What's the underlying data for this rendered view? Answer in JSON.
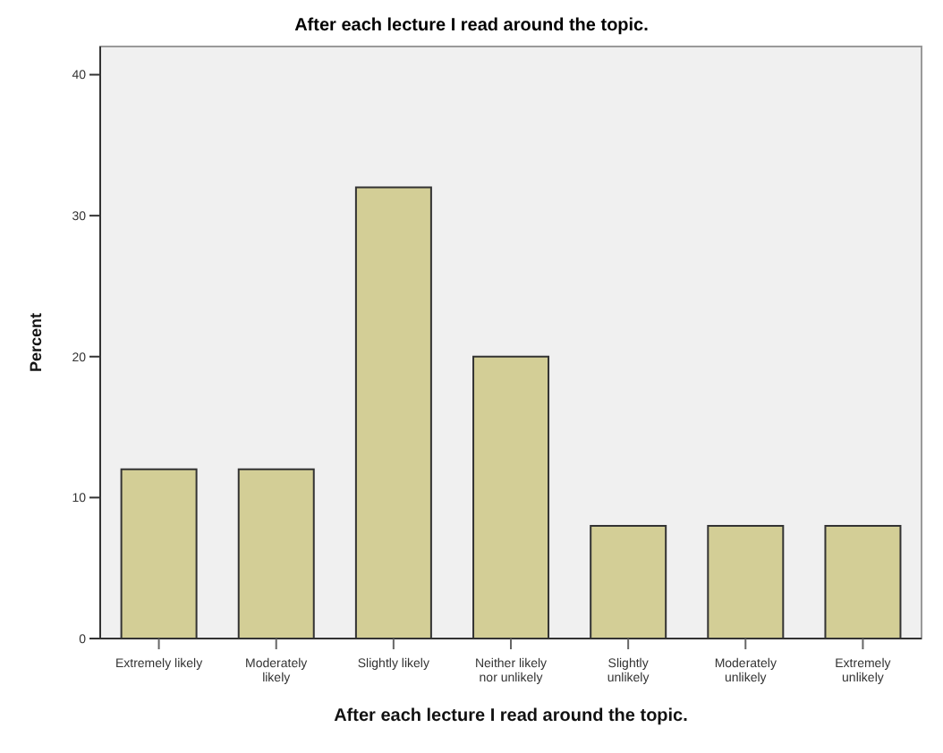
{
  "chart_data": {
    "type": "bar",
    "title": "After each lecture I read around the topic.",
    "xlabel": "After each lecture I read around the topic.",
    "ylabel": "Percent",
    "categories": [
      "Extremely likely",
      "Moderately likely",
      "Slightly likely",
      "Neither likely nor unlikely",
      "Slightly unlikely",
      "Moderately unlikely",
      "Extremely unlikely"
    ],
    "values": [
      12,
      12,
      32,
      20,
      8,
      8,
      8
    ],
    "color": "#d3ce96",
    "ylim": [
      0,
      42
    ],
    "yticks": [
      0,
      10,
      20,
      30,
      40
    ]
  }
}
